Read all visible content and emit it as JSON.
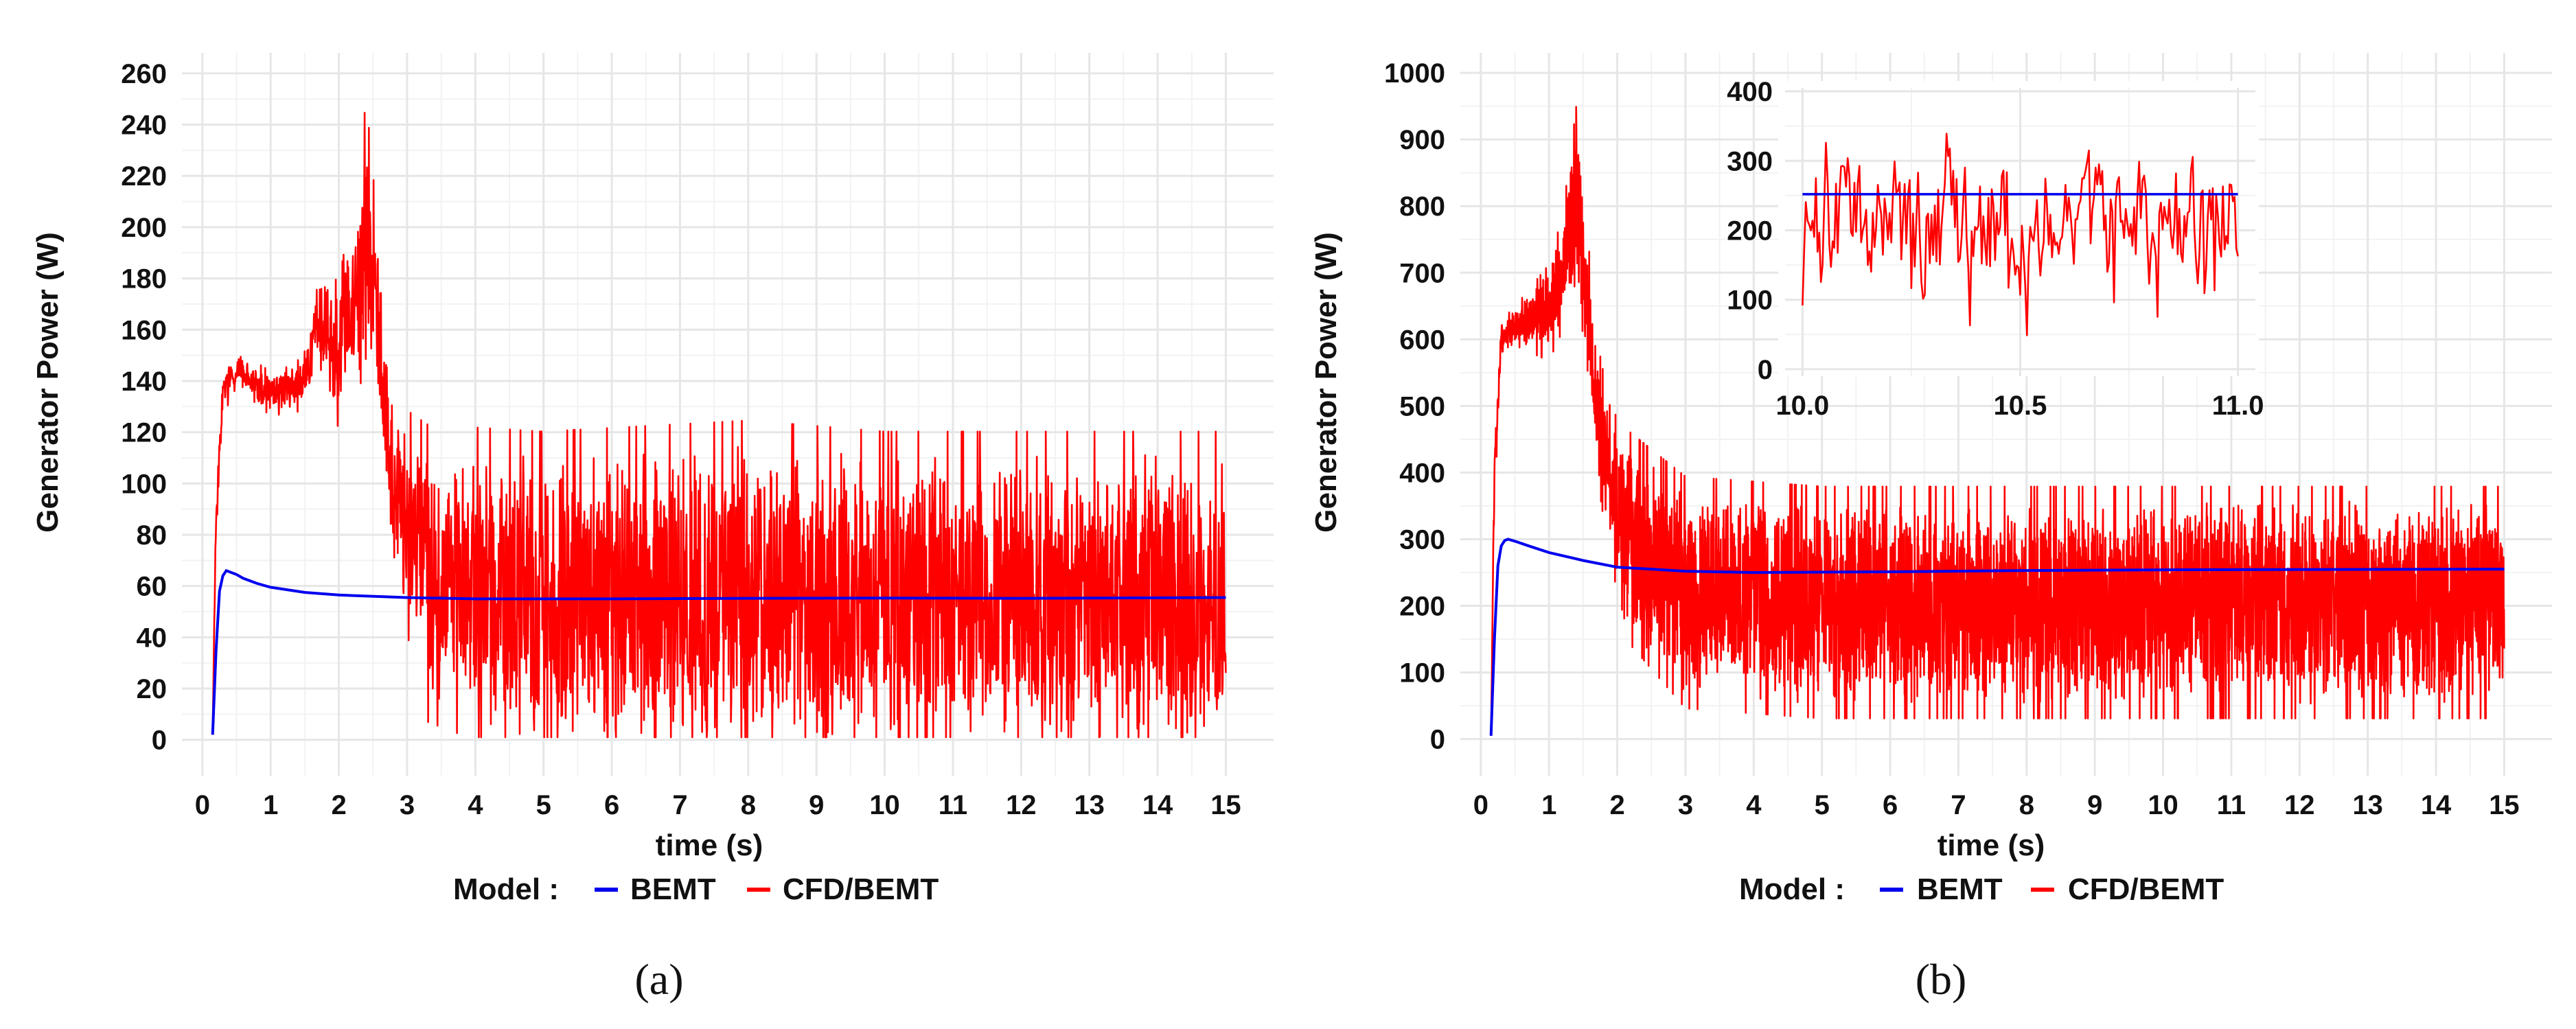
{
  "figure": {
    "legend": {
      "title": "Model :",
      "items": [
        "BEMT",
        "CFD/BEMT"
      ]
    },
    "colors": {
      "BEMT": "#0000ee",
      "CFD/BEMT": "#ff0000",
      "grid_major": "#e6e6e6",
      "grid_minor": "#f2f2f2"
    }
  },
  "chart_data": [
    {
      "panel_label": "(a)",
      "type": "line",
      "title": "",
      "xlabel": "time (s)",
      "ylabel": "Generator Power (W)",
      "xlim": [
        -0.3,
        15.7
      ],
      "ylim": [
        -14,
        268
      ],
      "x_ticks": [
        0,
        1,
        2,
        3,
        4,
        5,
        6,
        7,
        8,
        9,
        10,
        11,
        12,
        13,
        14,
        15
      ],
      "y_ticks": [
        0,
        20,
        40,
        60,
        80,
        100,
        120,
        140,
        160,
        180,
        200,
        220,
        240,
        260
      ],
      "grid": true,
      "legend_position": "bottom",
      "series": [
        {
          "name": "BEMT",
          "x": [
            0.15,
            0.2,
            0.25,
            0.3,
            0.35,
            0.4,
            0.5,
            0.6,
            0.8,
            1.0,
            1.5,
            2.0,
            3.0,
            4.0,
            6.0,
            8.0,
            10.0,
            12.0,
            15.0
          ],
          "y": [
            2,
            35,
            58,
            64,
            66,
            65.5,
            64.5,
            63,
            61,
            59.5,
            57.5,
            56.5,
            55.5,
            55,
            55,
            55.2,
            55.3,
            55.2,
            55.5
          ]
        },
        {
          "name": "CFD/BEMT",
          "t_start": 0.15,
          "t_end": 15.0,
          "envelope_t": [
            0.15,
            0.2,
            0.3,
            0.5,
            1.0,
            1.5,
            1.7,
            2.0,
            2.3,
            2.4,
            2.6,
            2.8,
            3.0,
            3.3,
            5.0,
            8.0,
            10.0,
            12.0,
            15.0
          ],
          "envelope_mean": [
            2,
            90,
            135,
            145,
            135,
            140,
            165,
            150,
            180,
            200,
            155,
            95,
            85,
            65,
            55,
            55,
            55,
            55,
            55
          ],
          "envelope_amp": [
            0,
            10,
            6,
            5,
            6,
            8,
            12,
            20,
            30,
            35,
            25,
            25,
            30,
            40,
            45,
            48,
            45,
            45,
            45
          ]
        }
      ]
    },
    {
      "panel_label": "(b)",
      "type": "line",
      "title": "",
      "xlabel": "time (s)",
      "ylabel": "Generator Power (W)",
      "xlim": [
        -0.3,
        15.7
      ],
      "ylim": [
        -55,
        1030
      ],
      "x_ticks": [
        0,
        1,
        2,
        3,
        4,
        5,
        6,
        7,
        8,
        9,
        10,
        11,
        12,
        13,
        14,
        15
      ],
      "y_ticks": [
        0,
        100,
        200,
        300,
        400,
        500,
        600,
        700,
        800,
        900,
        1000
      ],
      "grid": true,
      "legend_position": "bottom",
      "series": [
        {
          "name": "BEMT",
          "x": [
            0.15,
            0.2,
            0.25,
            0.3,
            0.35,
            0.4,
            0.5,
            0.7,
            1.0,
            1.5,
            2.0,
            3.0,
            4.0,
            6.0,
            8.0,
            10.0,
            15.0
          ],
          "y": [
            5,
            150,
            260,
            290,
            298,
            300,
            297,
            290,
            280,
            268,
            258,
            252,
            250,
            251,
            253,
            254,
            255
          ]
        },
        {
          "name": "CFD/BEMT",
          "t_start": 0.15,
          "t_end": 15.0,
          "envelope_t": [
            0.15,
            0.2,
            0.3,
            0.5,
            1.0,
            1.2,
            1.4,
            1.5,
            1.7,
            1.9,
            2.2,
            3.0,
            5.0,
            8.0,
            15.0
          ],
          "envelope_mean": [
            5,
            400,
            600,
            620,
            640,
            700,
            820,
            720,
            500,
            380,
            300,
            220,
            205,
            205,
            205
          ],
          "envelope_amp": [
            0,
            30,
            20,
            20,
            50,
            60,
            90,
            80,
            70,
            80,
            110,
            120,
            120,
            120,
            120
          ]
        }
      ],
      "inset": {
        "xlim": [
          9.96,
          11.04
        ],
        "ylim": [
          -10,
          405
        ],
        "x_ticks": [
          10.0,
          10.5,
          11.0
        ],
        "x_tick_labels": [
          "10.0",
          "10.5",
          "11.0"
        ],
        "y_ticks": [
          0,
          100,
          200,
          300,
          400
        ],
        "BEMT_level": 252,
        "CFD_mean": 205,
        "CFD_amp": 110
      }
    }
  ]
}
